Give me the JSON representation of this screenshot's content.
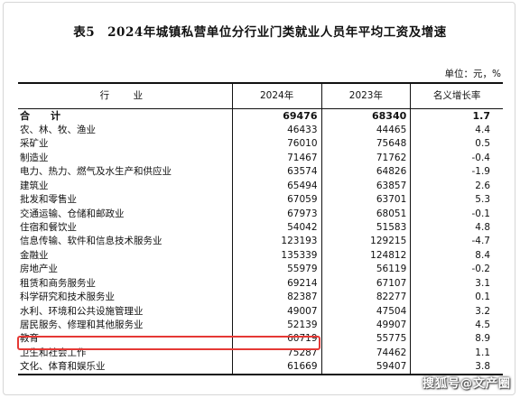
{
  "title": "表5　2024年城镇私营单位分行业门类就业人员年平均工资及增速",
  "unit": "单位：元，%",
  "headers": {
    "industry": "行　业",
    "y2024": "2024年",
    "y2023": "2023年",
    "growth": "名义增长率"
  },
  "rows": [
    {
      "industry": "合　计",
      "v2024": "69476",
      "v2023": "68340",
      "growth": "1.7"
    },
    {
      "industry": "农、林、牧、渔业",
      "v2024": "46433",
      "v2023": "44465",
      "growth": "4.4"
    },
    {
      "industry": "采矿业",
      "v2024": "76010",
      "v2023": "75648",
      "growth": "0.5"
    },
    {
      "industry": "制造业",
      "v2024": "71467",
      "v2023": "71762",
      "growth": "-0.4"
    },
    {
      "industry": "电力、热力、燃气及水生产和供应业",
      "v2024": "63574",
      "v2023": "64826",
      "growth": "-1.9"
    },
    {
      "industry": "建筑业",
      "v2024": "65494",
      "v2023": "63857",
      "growth": "2.6"
    },
    {
      "industry": "批发和零售业",
      "v2024": "67059",
      "v2023": "63701",
      "growth": "5.3"
    },
    {
      "industry": "交通运输、仓储和邮政业",
      "v2024": "67973",
      "v2023": "68051",
      "growth": "-0.1"
    },
    {
      "industry": "住宿和餐饮业",
      "v2024": "54042",
      "v2023": "51583",
      "growth": "4.8"
    },
    {
      "industry": "信息传输、软件和信息技术服务业",
      "v2024": "123193",
      "v2023": "129215",
      "growth": "-4.7"
    },
    {
      "industry": "金融业",
      "v2024": "135339",
      "v2023": "124812",
      "growth": "8.4"
    },
    {
      "industry": "房地产业",
      "v2024": "55979",
      "v2023": "56119",
      "growth": "-0.2"
    },
    {
      "industry": "租赁和商务服务业",
      "v2024": "69214",
      "v2023": "67107",
      "growth": "3.1"
    },
    {
      "industry": "科学研究和技术服务业",
      "v2024": "82387",
      "v2023": "82277",
      "growth": "0.1"
    },
    {
      "industry": "水利、环境和公共设施管理业",
      "v2024": "49007",
      "v2023": "47504",
      "growth": "3.2"
    },
    {
      "industry": "居民服务、修理和其他服务业",
      "v2024": "52139",
      "v2023": "49907",
      "growth": "4.5"
    },
    {
      "industry": "教育",
      "v2024": "60719",
      "v2023": "55775",
      "growth": "8.9"
    },
    {
      "industry": "卫生和社会工作",
      "v2024": "75287",
      "v2023": "74462",
      "growth": "1.1"
    },
    {
      "industry": "文化、体育和娱乐业",
      "v2024": "61669",
      "v2023": "59407",
      "growth": "3.8"
    }
  ],
  "highlight_color": "#e53935",
  "watermark": "搜狐号@文产圈"
}
